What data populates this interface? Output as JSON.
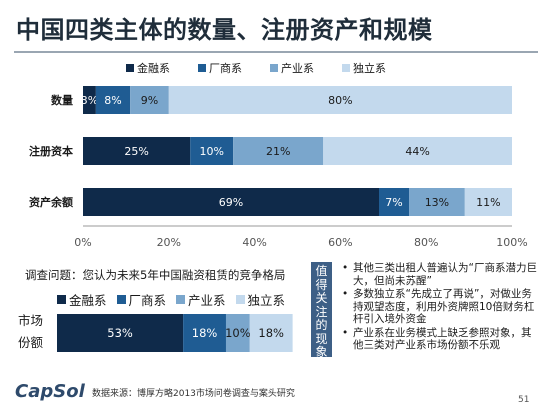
{
  "title": "中国四类主体的数量、注册资产和规模",
  "colors": {
    "金融系": "#0f2a4a",
    "厂商系": "#1f5c93",
    "产业系": "#7aa6cc",
    "独立系": "#c3d9ed"
  },
  "chart_data": [
    {
      "type": "bar",
      "orientation": "horizontal",
      "stacked": true,
      "categories": [
        "数量",
        "注册资本",
        "资产余额"
      ],
      "series": [
        {
          "name": "金融系",
          "values": [
            3,
            25,
            69
          ],
          "labels": [
            "3%",
            "25%",
            "69%"
          ]
        },
        {
          "name": "厂商系",
          "values": [
            8,
            10,
            7
          ],
          "labels": [
            "8%",
            "10%",
            "7%"
          ]
        },
        {
          "name": "产业系",
          "values": [
            9,
            21,
            13
          ],
          "labels": [
            "9%",
            "21%",
            "13%"
          ]
        },
        {
          "name": "独立系",
          "values": [
            80,
            44,
            11
          ],
          "labels": [
            "80%",
            "44%",
            "11%"
          ]
        }
      ],
      "xlim": [
        0,
        100
      ],
      "xticks": [
        "0%",
        "20%",
        "40%",
        "60%",
        "80%",
        "100%"
      ],
      "legend": "top",
      "grid": false
    },
    {
      "type": "bar",
      "orientation": "horizontal",
      "stacked": true,
      "categories": [
        "市场份额"
      ],
      "category_lines": [
        "市场",
        "份额"
      ],
      "series": [
        {
          "name": "金融系",
          "values": [
            53
          ],
          "labels": [
            "53%"
          ]
        },
        {
          "name": "厂商系",
          "values": [
            18
          ],
          "labels": [
            "18%"
          ]
        },
        {
          "name": "产业系",
          "values": [
            10
          ],
          "labels": [
            "10%"
          ]
        },
        {
          "name": "独立系",
          "values": [
            18
          ],
          "labels": [
            "18%"
          ]
        }
      ],
      "xlim": [
        0,
        100
      ],
      "legend": "top",
      "grid": false
    }
  ],
  "survey_question": "调查问题：您认为未来5年中国融资租赁的竞争格局",
  "vertical_label": [
    "值",
    "得",
    "关",
    "注",
    "的",
    "现",
    "象"
  ],
  "notes": [
    "其他三类出租人普遍认为“厂商系潜力巨大，但尚未苏醒”",
    "多数独立系“先成立了再说”，对做业务持观望态度，利用外资牌照10倍财务杠杆引入境外资金",
    "产业系在业务模式上缺乏参照对象，其他三类对产业系市场份额不乐观"
  ],
  "logo": "CapSol",
  "source": "数据来源：博厚方略2013市场问卷调查与案头研究",
  "page_number": "51"
}
